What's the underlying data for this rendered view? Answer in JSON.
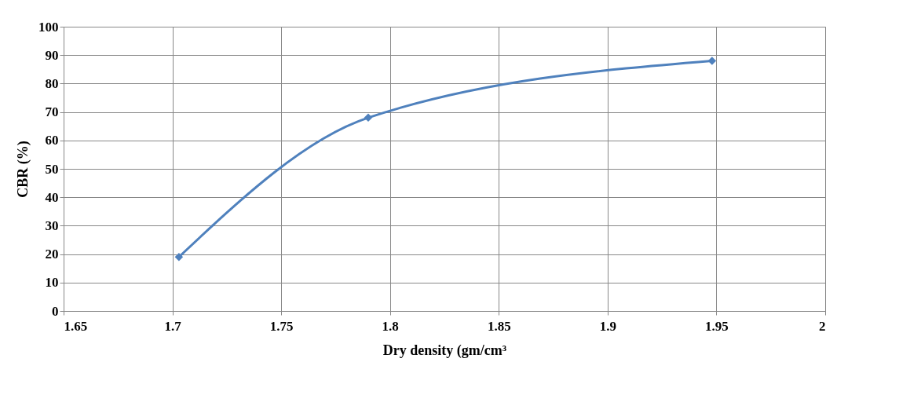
{
  "chart_data": {
    "type": "line",
    "xlabel": "Dry density (gm/cm³",
    "ylabel": "CBR (%)",
    "x": [
      1.703,
      1.79,
      1.948
    ],
    "series": [
      {
        "color": "#4f81bd",
        "values": [
          19,
          68,
          88
        ]
      }
    ],
    "xlim": [
      1.65,
      2
    ],
    "xticks": [
      1.65,
      1.7,
      1.75,
      1.8,
      1.85,
      1.9,
      1.95,
      2
    ],
    "ylim": [
      0,
      100
    ],
    "yticks": [
      0,
      10,
      20,
      30,
      40,
      50,
      60,
      70,
      80,
      90,
      100
    ],
    "grid": true,
    "marker": "diamond",
    "line_style": "solid",
    "legend": false
  }
}
